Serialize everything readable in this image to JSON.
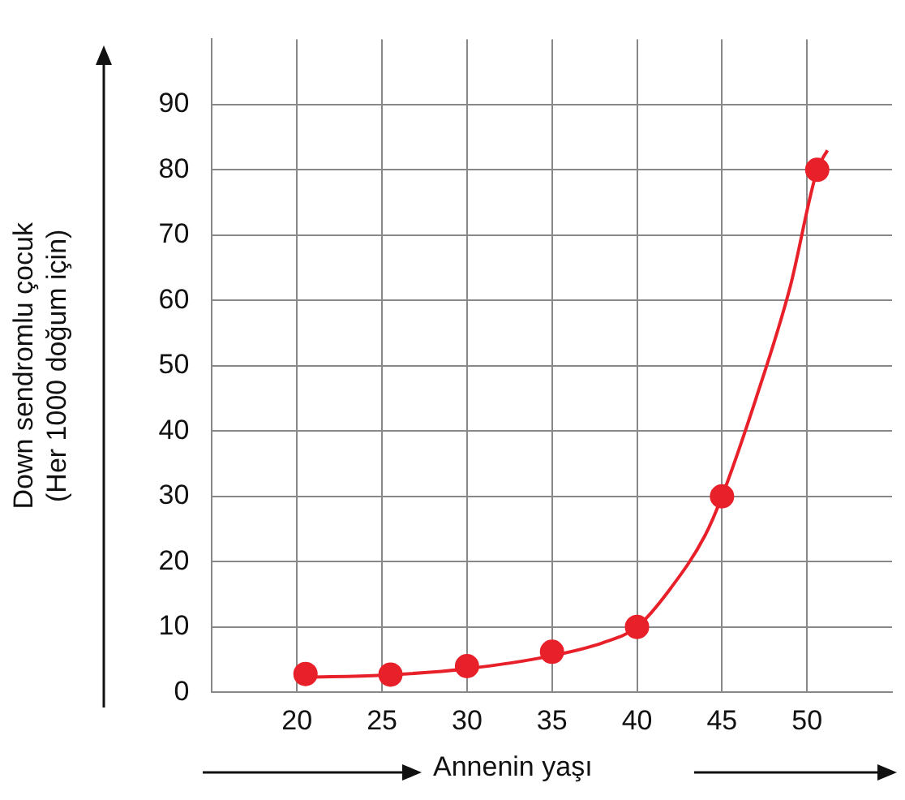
{
  "chart_data": {
    "type": "scatter",
    "xlabel": "Annenin yaşı",
    "ylabel": "Down sendromlu çocuk\n(Her 1000 doğum için)",
    "xlim": [
      15,
      55
    ],
    "xticks": [
      20,
      25,
      30,
      35,
      40,
      45,
      50
    ],
    "ylim": [
      0,
      100
    ],
    "yticks": [
      0,
      10,
      20,
      30,
      40,
      50,
      60,
      70,
      80,
      90
    ],
    "grid": true,
    "series": [
      {
        "marker": "circle",
        "color": "#e8202a",
        "x": [
          20.5,
          25.5,
          30,
          35,
          40,
          45,
          50.6
        ],
        "values": [
          2.8,
          2.7,
          4,
          6.2,
          10,
          30,
          80
        ]
      },
      {
        "type": "line",
        "marker": "none",
        "color": "#e8202a",
        "x": [
          20.5,
          25,
          30,
          35,
          38,
          40,
          42,
          44,
          45,
          47,
          49,
          50.6,
          51.2
        ],
        "values": [
          2.3,
          2.6,
          3.6,
          5.6,
          7.6,
          10,
          16,
          24,
          30,
          45,
          62,
          80,
          83
        ]
      }
    ]
  }
}
